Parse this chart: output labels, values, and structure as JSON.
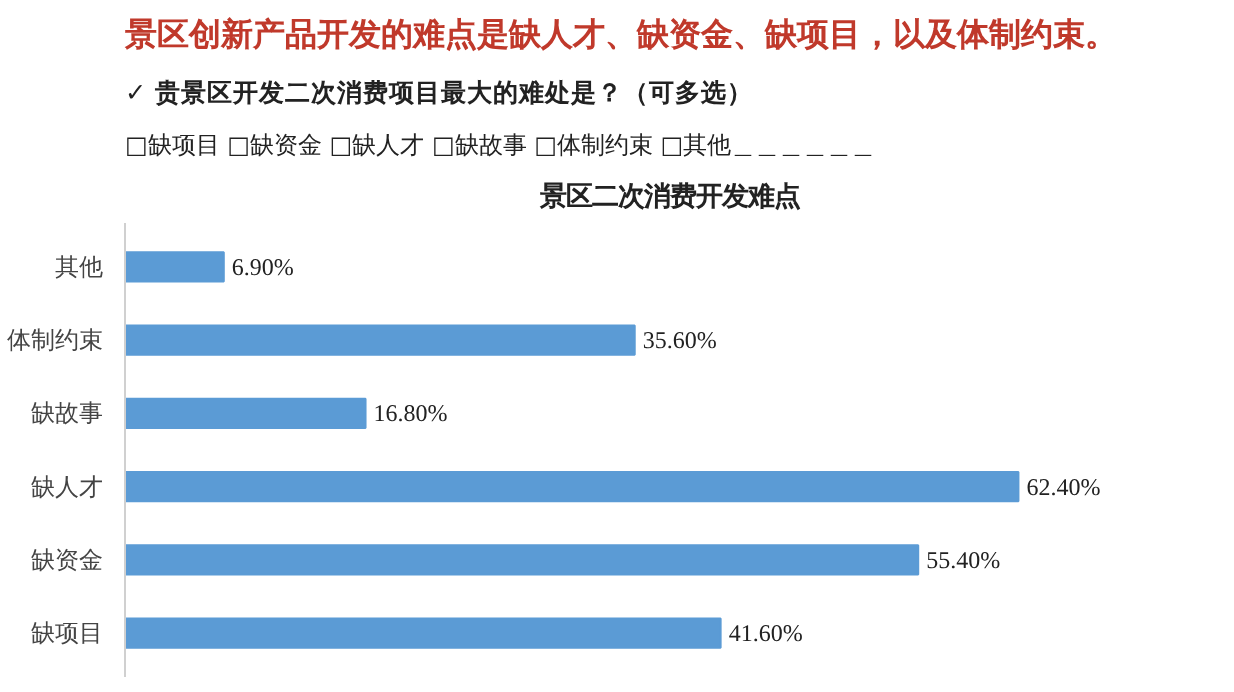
{
  "chart_data": {
    "type": "bar",
    "orientation": "horizontal",
    "title": "景区二次消费开发难点",
    "annotations": [
      "景区创新产品开发的难点是缺人才、缺资金、缺项目，以及体制约束。",
      "✓ 贵景区开发二次消费项目最大的难处是？（可多选）",
      "□缺项目  □缺资金  □缺人才  □缺故事  □体制约束  □其他＿＿＿＿＿＿"
    ],
    "categories": [
      "其他",
      "体制约束",
      "缺故事",
      "缺人才",
      "缺资金",
      "缺项目"
    ],
    "values": [
      6.9,
      35.6,
      16.8,
      62.4,
      55.4,
      41.6
    ],
    "value_labels": [
      "6.90%",
      "35.60%",
      "16.80%",
      "62.40%",
      "55.40%",
      "41.60%"
    ],
    "color": "#5b9bd5",
    "grid": false
  }
}
